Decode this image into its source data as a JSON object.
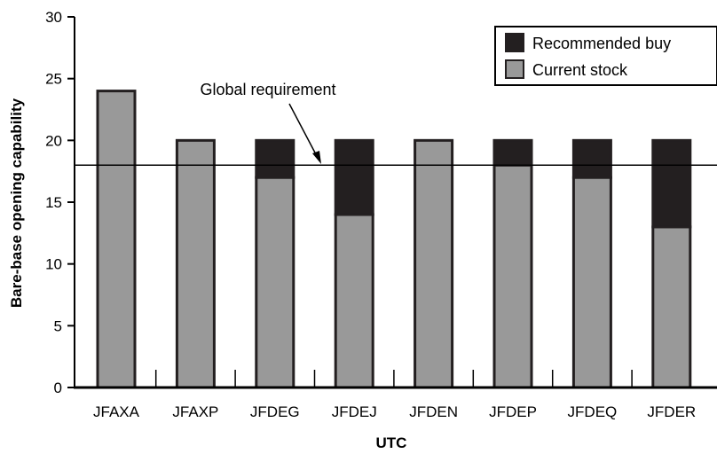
{
  "chart_data": {
    "type": "bar",
    "stacked": true,
    "categories": [
      "JFAXA",
      "JFAXP",
      "JFDEG",
      "JFDEJ",
      "JFDEN",
      "JFDEP",
      "JFDEQ",
      "JFDER"
    ],
    "series": [
      {
        "name": "Current stock",
        "color": "#999999",
        "values": [
          24,
          20,
          17,
          14,
          20,
          18,
          17,
          13
        ]
      },
      {
        "name": "Recommended buy",
        "color": "#231f20",
        "values": [
          0,
          0,
          3,
          6,
          0,
          2,
          3,
          7
        ]
      }
    ],
    "legend_order": [
      "Recommended buy",
      "Current stock"
    ],
    "reference_line": {
      "value": 18,
      "label": "Global requirement"
    },
    "xlabel": "UTC",
    "ylabel": "Bare-base opening capability",
    "ylim": [
      0,
      30
    ],
    "yticks": [
      0,
      5,
      10,
      15,
      20,
      25,
      30
    ],
    "grid": false,
    "legend_position": "top-right"
  }
}
